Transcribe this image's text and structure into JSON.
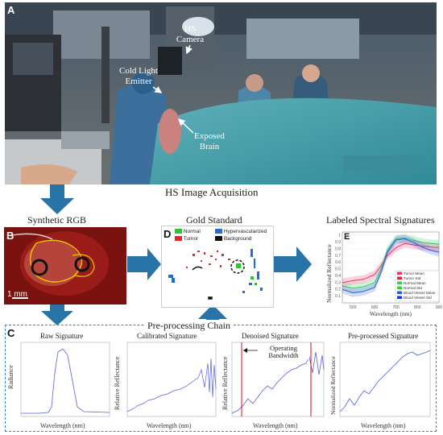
{
  "panel_letters": {
    "a": "A",
    "b": "B",
    "c": "C",
    "d": "D",
    "e": "E"
  },
  "photo_labels": {
    "camera": "HS\nCamera",
    "emitter": "Cold Light\nEmitter",
    "brain": "Exposed\nBrain"
  },
  "captions": {
    "acquisition": "HS Image Acquisition",
    "synthetic_rgb": "Synthetic RGB",
    "gold_standard": "Gold Standard",
    "labeled_signatures": "Labeled Spectral Signatures",
    "preprocessing": "Pre-processing Chain"
  },
  "scale_bar": "1 mm",
  "gold_legend": [
    {
      "label": "Normal",
      "color": "#22cc22"
    },
    {
      "label": "Hypervascularized",
      "color": "#1f6fd6"
    },
    {
      "label": "Tumor",
      "color": "#ee2222"
    },
    {
      "label": "Background",
      "color": "#111111"
    }
  ],
  "subplots": {
    "raw": {
      "title": "Raw Signature",
      "ylabel": "Radiance",
      "xlabel": "Wavelength (nm)"
    },
    "calibrated": {
      "title": "Calibrated Signature",
      "ylabel": "Relative Reflectance",
      "xlabel": "Wavelength (nm)"
    },
    "denoised": {
      "title": "Denoised Signature",
      "ylabel": "Relative Reflectance",
      "xlabel": "Wavelength (nm)",
      "annotation": "Operating\nBandwidth"
    },
    "preprocessed": {
      "title": "Pre-processed Signature",
      "ylabel": "Normalized Reflectance",
      "xlabel": "Wavelength (nm)"
    }
  },
  "chart_data": {
    "type": "line",
    "xlabel": "Wavelength (nm)",
    "ylabel": "Normalized Reflectance",
    "x_ticks": [
      "500",
      "600",
      "700",
      "800",
      "900"
    ],
    "y_ticks": [
      "0.1",
      "0.2",
      "0.3",
      "0.4",
      "0.5",
      "0.6",
      "0.7",
      "0.8",
      "0.9",
      "1"
    ],
    "xlim": [
      450,
      900
    ],
    "ylim": [
      0,
      1.05
    ],
    "x": [
      450,
      500,
      550,
      600,
      630,
      660,
      700,
      740,
      780,
      820,
      860,
      900
    ],
    "series": [
      {
        "name": "Tumor Mean",
        "color": "#ee3366",
        "values": [
          0.3,
          0.33,
          0.35,
          0.42,
          0.55,
          0.7,
          0.82,
          0.88,
          0.86,
          0.84,
          0.83,
          0.82
        ]
      },
      {
        "name": "Normal Mean",
        "color": "#33cc66",
        "values": [
          0.25,
          0.22,
          0.24,
          0.3,
          0.5,
          0.78,
          0.95,
          0.96,
          0.93,
          0.9,
          0.88,
          0.87
        ]
      },
      {
        "name": "Blood Vessel Mean",
        "color": "#3355dd",
        "values": [
          0.2,
          0.15,
          0.17,
          0.23,
          0.45,
          0.75,
          0.93,
          0.95,
          0.9,
          0.83,
          0.78,
          0.75
        ]
      }
    ],
    "legend": [
      "Tumor Mean",
      "Tumor Std",
      "Normal Mean",
      "Normal Std",
      "Blood Vessel Mean",
      "Blood Vessel Std"
    ],
    "legend_colors": [
      "#ee3366",
      "#ee2222",
      "#33cc66",
      "#22dd22",
      "#3355dd",
      "#1133ee"
    ],
    "legend_position": "bottom-right"
  }
}
